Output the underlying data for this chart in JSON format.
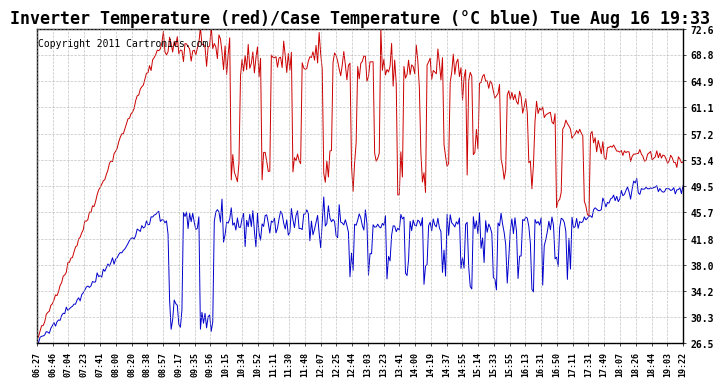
{
  "title": "Inverter Temperature (red)/Case Temperature (°C blue) Tue Aug 16 19:33",
  "copyright": "Copyright 2011 Cartronics.com",
  "y_ticks": [
    26.5,
    30.3,
    34.2,
    38.0,
    41.8,
    45.7,
    49.5,
    53.4,
    57.2,
    61.1,
    64.9,
    68.8,
    72.6
  ],
  "ylim": [
    26.5,
    72.6
  ],
  "x_labels": [
    "06:27",
    "06:46",
    "07:04",
    "07:23",
    "07:41",
    "08:00",
    "08:20",
    "08:38",
    "08:57",
    "09:17",
    "09:35",
    "09:56",
    "10:15",
    "10:34",
    "10:52",
    "11:11",
    "11:30",
    "11:48",
    "12:07",
    "12:25",
    "12:44",
    "13:03",
    "13:23",
    "13:41",
    "14:00",
    "14:19",
    "14:37",
    "14:55",
    "15:14",
    "15:33",
    "15:55",
    "16:13",
    "16:31",
    "16:50",
    "17:11",
    "17:31",
    "17:49",
    "18:07",
    "18:26",
    "18:44",
    "19:03",
    "19:22"
  ],
  "bg_color": "#ffffff",
  "grid_color": "#aaaaaa",
  "line_red": "#cc0000",
  "line_blue": "#0000cc",
  "title_fontsize": 12,
  "copyright_fontsize": 7
}
